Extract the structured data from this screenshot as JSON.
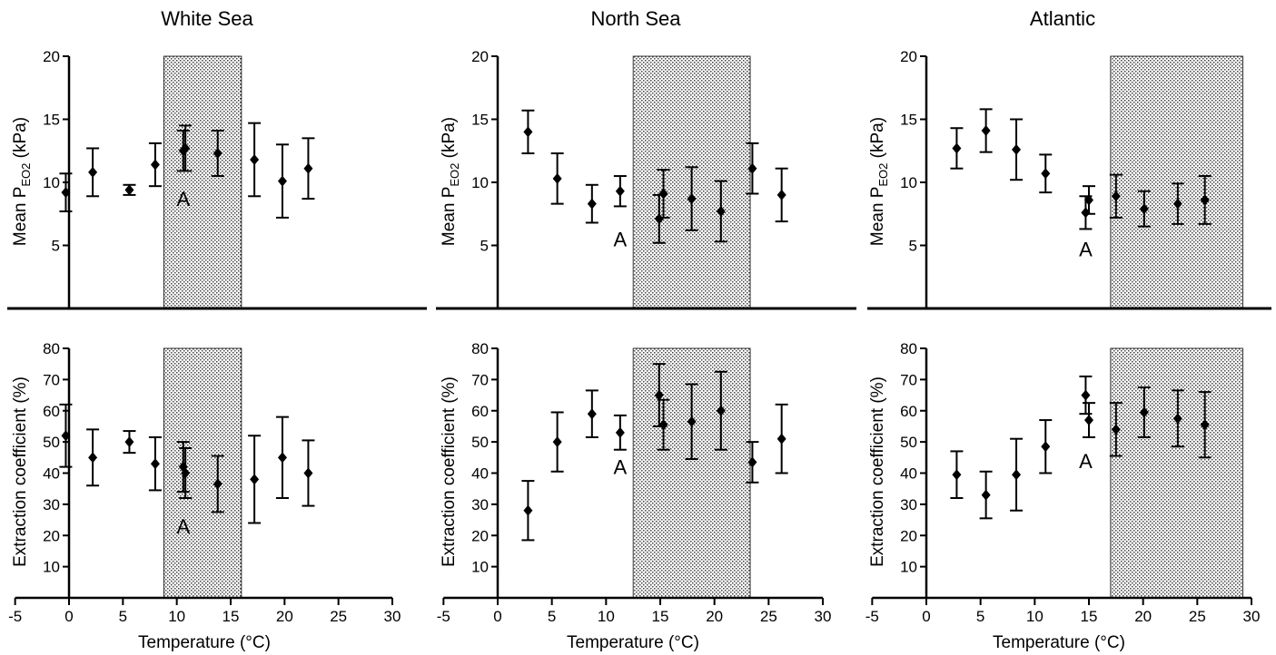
{
  "figure": {
    "columns": [
      "White Sea",
      "North Sea",
      "Atlantic"
    ],
    "top_ylabel": {
      "main": "Mean P",
      "sub": "EO2",
      "unit": " (kPa)"
    },
    "bottom_ylabel": "Extraction coefficient (%)",
    "xlabel": "Temperature (°C)",
    "x_ticks": [
      "-5",
      "0",
      "5",
      "10",
      "15",
      "20",
      "25",
      "30"
    ],
    "top_y_ticks": [
      "5",
      "10",
      "15",
      "20"
    ],
    "bottom_y_ticks": [
      "10",
      "20",
      "30",
      "40",
      "50",
      "60",
      "70",
      "80"
    ]
  },
  "chart_data": [
    {
      "type": "scatter",
      "panel": "White Sea - Mean PEO2",
      "title": "White Sea",
      "xlabel": "",
      "ylabel": "Mean PEO2 (kPa)",
      "xlim": [
        -5,
        30
      ],
      "ylim": [
        0,
        20
      ],
      "shaded_x": [
        8.8,
        16
      ],
      "x": [
        -0.3,
        2.2,
        5.6,
        8.0,
        10.6,
        10.8,
        13.8,
        17.2,
        19.8,
        22.2
      ],
      "y": [
        9.2,
        10.8,
        9.4,
        11.4,
        12.5,
        12.7,
        12.3,
        11.8,
        10.1,
        11.1
      ],
      "err": [
        1.5,
        1.9,
        0.4,
        1.7,
        1.6,
        1.8,
        1.8,
        2.9,
        2.9,
        2.4
      ],
      "annotations": [
        {
          "text": "A",
          "x": 10.6,
          "y": 8.7
        }
      ]
    },
    {
      "type": "scatter",
      "panel": "North Sea - Mean PEO2",
      "title": "North Sea",
      "xlabel": "",
      "ylabel": "Mean PEO2 (kPa)",
      "xlim": [
        -5,
        30
      ],
      "ylim": [
        0,
        20
      ],
      "shaded_x": [
        12.5,
        23.3
      ],
      "x": [
        2.8,
        5.5,
        8.7,
        11.3,
        14.9,
        15.3,
        17.9,
        20.6,
        23.5,
        26.2
      ],
      "y": [
        14.0,
        10.3,
        8.3,
        9.3,
        7.1,
        9.1,
        8.7,
        7.7,
        11.1,
        9.0
      ],
      "err": [
        1.7,
        2.0,
        1.5,
        1.2,
        1.9,
        1.9,
        2.5,
        2.4,
        2.0,
        2.1
      ],
      "annotations": [
        {
          "text": "A",
          "x": 11.3,
          "y": 5.5
        }
      ]
    },
    {
      "type": "scatter",
      "panel": "Atlantic - Mean PEO2",
      "title": "Atlantic",
      "xlabel": "",
      "ylabel": "Mean PEO2 (kPa)",
      "xlim": [
        -5,
        30
      ],
      "ylim": [
        0,
        20
      ],
      "shaded_x": [
        17,
        29.2
      ],
      "x": [
        2.8,
        5.5,
        8.3,
        11.0,
        14.7,
        15.0,
        17.5,
        20.1,
        23.2,
        25.7
      ],
      "y": [
        12.7,
        14.1,
        12.6,
        10.7,
        7.6,
        8.6,
        8.9,
        7.9,
        8.3,
        8.6
      ],
      "err": [
        1.6,
        1.7,
        2.4,
        1.5,
        1.3,
        1.1,
        1.7,
        1.4,
        1.6,
        1.9
      ],
      "annotations": [
        {
          "text": "A",
          "x": 14.7,
          "y": 4.7
        }
      ]
    },
    {
      "type": "scatter",
      "panel": "White Sea - Extraction coefficient",
      "title": "",
      "xlabel": "Temperature (°C)",
      "ylabel": "Extraction coefficient (%)",
      "xlim": [
        -5,
        30
      ],
      "ylim": [
        0,
        80
      ],
      "shaded_x": [
        8.8,
        16
      ],
      "x": [
        -0.3,
        2.2,
        5.6,
        8.0,
        10.6,
        10.8,
        13.8,
        17.2,
        19.8,
        22.2
      ],
      "y": [
        52,
        45,
        50,
        43,
        42,
        40,
        36.5,
        38,
        45,
        40
      ],
      "err": [
        10,
        9,
        3.5,
        8.5,
        8,
        8,
        9,
        14,
        13,
        10.5
      ],
      "annotations": [
        {
          "text": "A",
          "x": 10.6,
          "y": 23
        }
      ]
    },
    {
      "type": "scatter",
      "panel": "North Sea - Extraction coefficient",
      "title": "",
      "xlabel": "Temperature (°C)",
      "ylabel": "Extraction coefficient (%)",
      "xlim": [
        -5,
        30
      ],
      "ylim": [
        0,
        80
      ],
      "shaded_x": [
        12.5,
        23.3
      ],
      "x": [
        2.8,
        5.5,
        8.7,
        11.3,
        14.9,
        15.3,
        17.9,
        20.6,
        23.5,
        26.2
      ],
      "y": [
        28,
        50,
        59,
        53,
        65,
        55.5,
        56.5,
        60,
        43.5,
        51
      ],
      "err": [
        9.5,
        9.5,
        7.5,
        5.5,
        10,
        8,
        12,
        12.5,
        6.5,
        11
      ],
      "annotations": [
        {
          "text": "A",
          "x": 11.3,
          "y": 42
        }
      ]
    },
    {
      "type": "scatter",
      "panel": "Atlantic - Extraction coefficient",
      "title": "",
      "xlabel": "Temperature (°C)",
      "ylabel": "Extraction coefficient (%)",
      "xlim": [
        -5,
        30
      ],
      "ylim": [
        0,
        80
      ],
      "shaded_x": [
        17,
        29.2
      ],
      "x": [
        2.8,
        5.5,
        8.3,
        11.0,
        14.7,
        15.0,
        17.5,
        20.1,
        23.2,
        25.7
      ],
      "y": [
        39.5,
        33,
        39.5,
        48.5,
        65,
        57,
        54,
        59.5,
        57.5,
        55.5
      ],
      "err": [
        7.5,
        7.5,
        11.5,
        8.5,
        6,
        5.5,
        8.5,
        8,
        9,
        10.5
      ],
      "annotations": [
        {
          "text": "A",
          "x": 14.7,
          "y": 44
        }
      ]
    }
  ]
}
